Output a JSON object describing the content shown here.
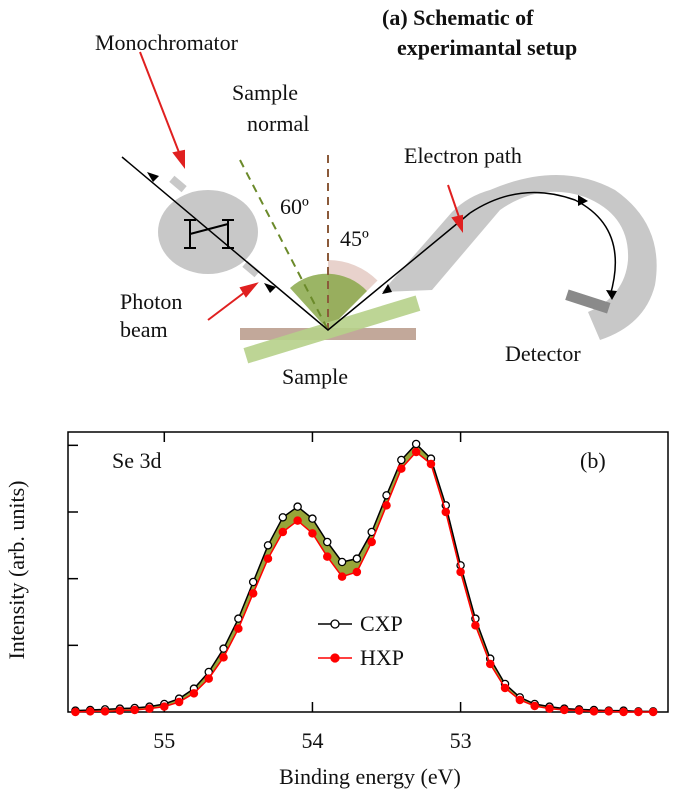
{
  "diagram": {
    "title": [
      "(a) Schematic of",
      "experimantal setup"
    ],
    "monochromator": "Monochromator",
    "sample_normal": [
      "Sample",
      "normal"
    ],
    "angle_incident": "60º",
    "angle_exit": "45º",
    "electron_path": "Electron path",
    "photon_beam": [
      "Photon",
      "beam"
    ],
    "sample": "Sample",
    "detector": "Detector"
  },
  "chart_data": {
    "type": "line",
    "panel_label": "(b)",
    "annotation": "Se 3d",
    "x_label": "Binding energy (eV)",
    "y_label": "Intensity (arb. units)",
    "x": [
      55.6,
      55.5,
      55.4,
      55.3,
      55.2,
      55.1,
      55.0,
      54.9,
      54.8,
      54.7,
      54.6,
      54.5,
      54.4,
      54.3,
      54.2,
      54.1,
      54.0,
      53.9,
      53.8,
      53.7,
      53.6,
      53.5,
      53.4,
      53.3,
      53.2,
      53.1,
      53.0,
      52.9,
      52.8,
      52.7,
      52.6,
      52.5,
      52.4,
      52.3,
      52.2,
      52.1,
      52.0,
      51.9,
      51.8,
      51.7
    ],
    "series": [
      {
        "name": "CXP",
        "color": "#000000",
        "marker": "open",
        "values": [
          0.02,
          0.03,
          0.04,
          0.05,
          0.06,
          0.08,
          0.12,
          0.2,
          0.35,
          0.6,
          0.95,
          1.4,
          1.95,
          2.5,
          2.92,
          3.08,
          2.9,
          2.55,
          2.25,
          2.3,
          2.7,
          3.25,
          3.78,
          4.02,
          3.8,
          3.1,
          2.2,
          1.4,
          0.8,
          0.42,
          0.22,
          0.12,
          0.08,
          0.05,
          0.04,
          0.03,
          0.02,
          0.02,
          0.01,
          0.01
        ]
      },
      {
        "name": "HXP",
        "color": "#ff0000",
        "marker": "filled",
        "values": [
          0.0,
          0.01,
          0.01,
          0.02,
          0.03,
          0.05,
          0.08,
          0.15,
          0.28,
          0.5,
          0.82,
          1.25,
          1.78,
          2.3,
          2.7,
          2.87,
          2.68,
          2.33,
          2.03,
          2.1,
          2.55,
          3.1,
          3.65,
          3.9,
          3.72,
          3.0,
          2.1,
          1.3,
          0.72,
          0.36,
          0.18,
          0.09,
          0.05,
          0.03,
          0.02,
          0.01,
          0.01,
          0.0,
          0.0,
          0.0
        ]
      }
    ],
    "fill_between": "#8c9a22",
    "xlim": [
      55.65,
      51.6
    ],
    "xticks": [
      55,
      54,
      53
    ],
    "ylim": [
      0,
      4.2
    ],
    "yticks": [
      1,
      2,
      3,
      4
    ],
    "legend": "center"
  }
}
